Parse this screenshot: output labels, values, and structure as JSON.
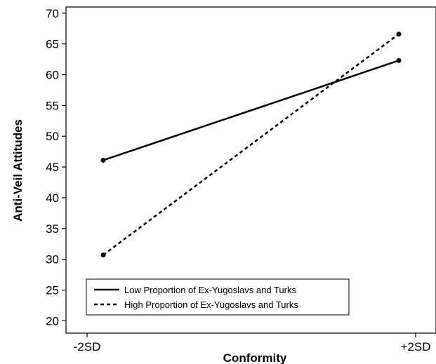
{
  "chart_data": {
    "type": "line",
    "title": "",
    "xlabel": "Conformity",
    "ylabel": "Anti-Veil Attitudes",
    "categories": [
      "-2SD",
      "+2SD"
    ],
    "ylim": [
      18,
      71
    ],
    "yticks": [
      20,
      25,
      30,
      35,
      40,
      45,
      50,
      55,
      60,
      65,
      70
    ],
    "grid": false,
    "legend_position": "bottom-left",
    "series": [
      {
        "name": "Low Proportion of Ex-Yugoslavs and Turks",
        "style": "solid",
        "values": [
          46.1,
          62.3
        ]
      },
      {
        "name": "High Proportion of Ex-Yugoslavs and Turks",
        "style": "dashed",
        "values": [
          30.7,
          66.6
        ]
      }
    ]
  }
}
